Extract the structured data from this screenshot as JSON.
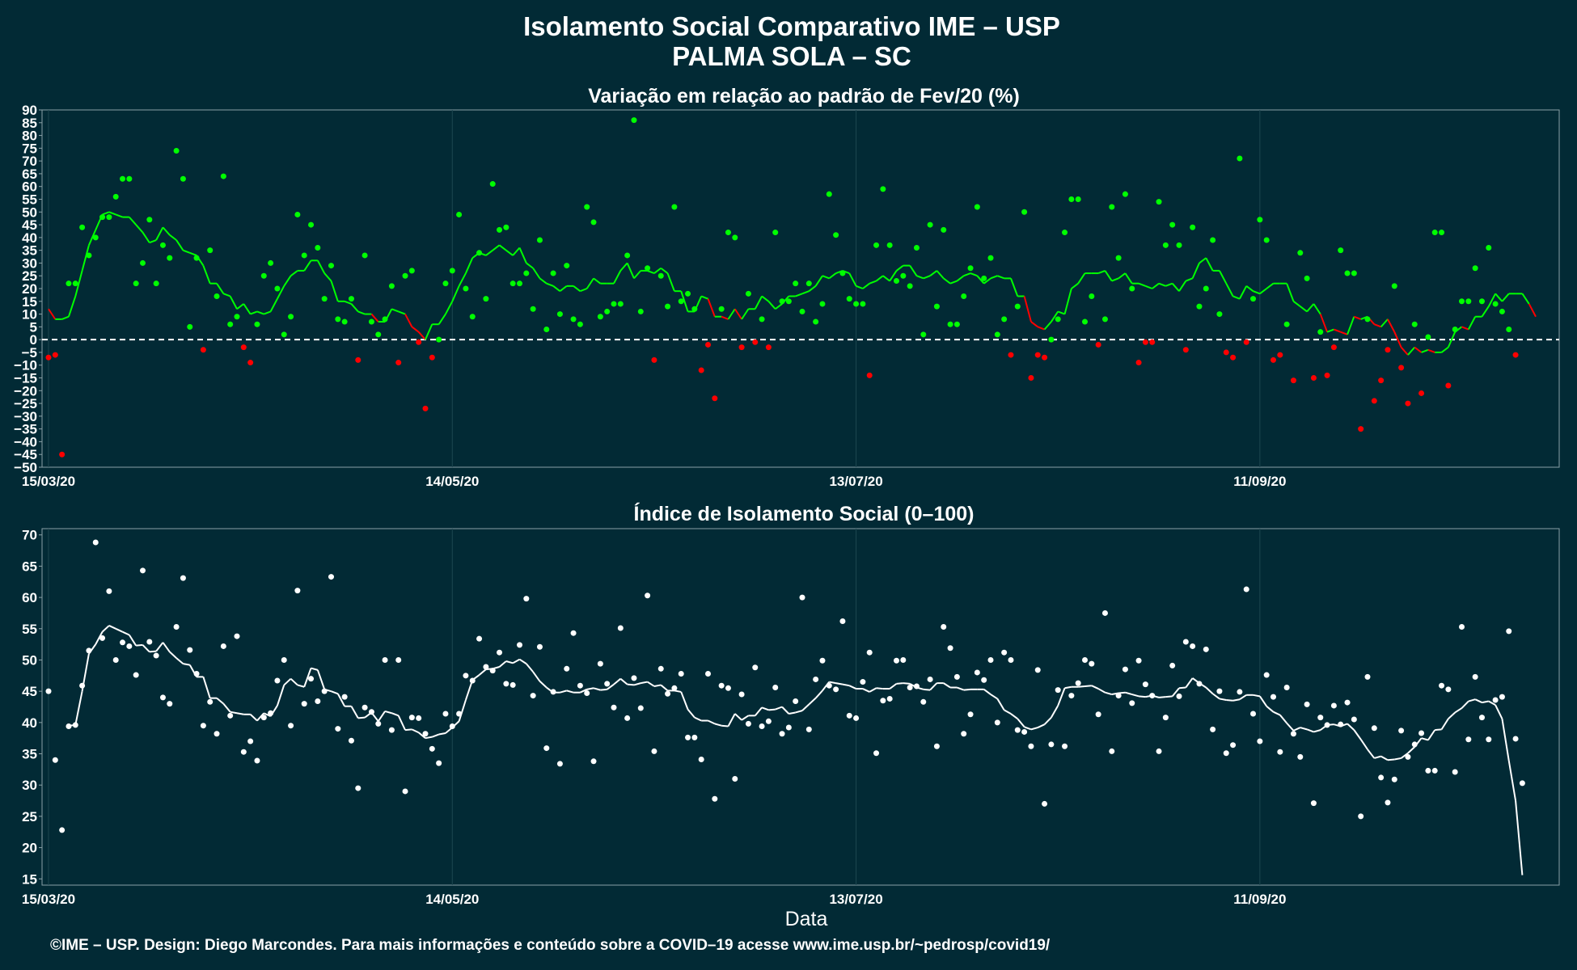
{
  "title_line1": "Isolamento Social Comparativo IME – USP",
  "title_line2": "PALMA SOLA – SC",
  "footer": "©IME – USP. Design: Diego Marcondes. Para mais informações e conteúdo sobre a COVID–19 acesse www.ime.usp.br/~pedrosp/covid19/",
  "colors": {
    "background": "#022a35",
    "above_zero": "#00ff00",
    "below_zero": "#ff0000",
    "index": "#ffffff",
    "grid": "#1d4650"
  },
  "chart_data": [
    {
      "type": "scatter",
      "title": "Variação em relação ao padrão de Fev/20 (%)",
      "xlabel": "",
      "ylabel": "",
      "x_tick_labels": [
        "15/03/20",
        "14/05/20",
        "13/07/20",
        "11/09/20"
      ],
      "x_range": [
        "15/03/20",
        "25/10/20"
      ],
      "ylim": [
        -50,
        90
      ],
      "y_ticks": [
        -50,
        -45,
        -40,
        -35,
        -30,
        -25,
        -20,
        -15,
        -10,
        -5,
        0,
        5,
        10,
        15,
        20,
        25,
        30,
        35,
        40,
        45,
        50,
        55,
        60,
        65,
        70,
        75,
        80,
        85,
        90
      ],
      "reference_line": 0,
      "series": [
        {
          "values": [
            -7,
            -6,
            -45,
            22,
            22,
            44,
            33,
            40,
            48,
            48,
            56,
            63,
            63,
            22,
            30,
            47,
            22,
            37,
            32,
            74,
            63,
            5,
            32,
            -4,
            35,
            17,
            64,
            6,
            9,
            -3,
            -9,
            6,
            25,
            30,
            20,
            2,
            9,
            49,
            33,
            45,
            36,
            16,
            29,
            8,
            7,
            16,
            -8,
            33,
            7,
            2,
            8,
            21,
            -9,
            25,
            27,
            -1,
            -27,
            -7,
            0,
            22,
            27,
            49,
            20,
            9,
            34,
            16,
            61,
            43,
            44,
            22,
            22,
            26,
            12,
            39,
            4,
            26,
            10,
            29,
            8,
            6,
            52,
            46,
            9,
            11,
            14,
            14,
            33,
            86,
            11,
            28,
            -8,
            25,
            13,
            52,
            15,
            18,
            12,
            -12,
            -2,
            -23,
            12,
            42,
            40,
            -3,
            18,
            -1,
            8,
            -3,
            42,
            15,
            15,
            22,
            11,
            22,
            7,
            14,
            57,
            41,
            26,
            16,
            14,
            14,
            -14,
            37,
            59,
            37,
            23,
            25,
            21,
            36,
            2,
            45,
            13,
            43,
            6,
            6,
            17,
            28,
            52,
            24,
            32,
            2,
            8,
            -6,
            13,
            50,
            -15,
            -6,
            -7,
            0,
            8,
            42,
            55,
            55,
            7,
            17,
            -2,
            8,
            52,
            32,
            57,
            20,
            -9,
            -1,
            -1,
            54,
            37,
            45,
            37,
            -4,
            44,
            13,
            20,
            39,
            10,
            -5,
            -7,
            71,
            -1,
            16,
            47,
            39,
            -8,
            -6,
            6,
            -16,
            34,
            24,
            -15,
            3,
            -14,
            -3,
            35,
            26,
            26,
            -35,
            8,
            -24,
            -16,
            -4,
            21,
            -11,
            -25,
            6,
            -21,
            1,
            42,
            42,
            -18,
            4,
            15,
            15,
            28,
            15,
            36,
            14,
            11,
            4,
            -6
          ]
        },
        {
          "values": [
            12,
            8,
            8,
            9,
            17,
            27,
            37,
            43,
            49,
            50,
            49,
            48,
            48,
            45,
            42,
            38,
            39,
            44,
            41,
            39,
            35,
            34,
            33,
            29,
            22,
            22,
            18,
            17,
            12,
            14,
            10,
            11,
            10,
            11,
            16,
            21,
            25,
            27,
            27,
            31,
            31,
            26,
            23,
            15,
            15,
            14,
            11,
            10,
            10,
            7,
            7,
            12,
            11,
            10,
            5,
            3,
            0,
            6,
            6,
            10,
            15,
            21,
            26,
            32,
            34,
            33,
            35,
            37,
            35,
            33,
            36,
            30,
            28,
            24,
            22,
            21,
            19,
            21,
            21,
            19,
            20,
            24,
            22,
            22,
            22,
            27,
            30,
            24,
            27,
            27,
            26,
            28,
            26,
            19,
            19,
            11,
            11,
            17,
            16,
            9,
            9,
            8,
            12,
            8,
            12,
            12,
            17,
            15,
            12,
            14,
            17,
            17,
            18,
            19,
            21,
            25,
            24,
            26,
            27,
            26,
            21,
            20,
            22,
            23,
            25,
            23,
            27,
            29,
            29,
            25,
            24,
            25,
            27,
            24,
            22,
            23,
            25,
            26,
            25,
            22,
            24,
            25,
            24,
            24,
            17,
            17,
            7,
            5,
            4,
            7,
            11,
            10,
            20,
            22,
            26,
            26,
            26,
            27,
            23,
            24,
            26,
            22,
            22,
            21,
            20,
            22,
            21,
            22,
            19,
            23,
            24,
            30,
            32,
            27,
            27,
            22,
            17,
            16,
            21,
            19,
            18,
            20,
            22,
            22,
            22,
            15,
            13,
            11,
            14,
            10,
            3,
            4,
            3,
            2,
            9,
            8,
            9,
            6,
            5,
            8,
            3,
            -3,
            -6,
            -3,
            -5,
            -4,
            -5,
            -5,
            -3,
            3,
            5,
            4,
            9,
            9,
            13,
            18,
            15,
            18,
            18,
            18,
            14,
            9
          ]
        }
      ]
    },
    {
      "type": "scatter",
      "title": "Índice de Isolamento Social (0–100)",
      "xlabel": "Data",
      "ylabel": "",
      "x_tick_labels": [
        "15/03/20",
        "14/05/20",
        "13/07/20",
        "11/09/20"
      ],
      "x_range": [
        "15/03/20",
        "25/10/20"
      ],
      "ylim": [
        14,
        71
      ],
      "y_ticks": [
        15,
        20,
        25,
        30,
        35,
        40,
        45,
        50,
        55,
        60,
        65,
        70
      ],
      "series": [
        {
          "values": [
            45,
            34,
            22.8,
            39.4,
            39.6,
            45.9,
            51.5,
            68.8,
            53.5,
            61,
            50,
            52.8,
            52.2,
            47.6,
            64.3,
            52.9,
            50.7,
            44,
            43,
            55.3,
            63.1,
            51.6,
            47.8,
            39.5,
            43.3,
            38.2,
            52.2,
            41.1,
            53.8,
            35.3,
            37,
            33.9,
            40.8,
            41.5,
            46.7,
            50,
            39.5,
            61.1,
            43,
            47,
            43.4,
            45,
            63.3,
            39,
            44.1,
            37.1,
            29.5,
            42.4,
            41.7,
            39.8,
            50,
            38.8,
            50,
            29,
            40.8,
            40.7,
            38.2,
            35.8,
            33.5,
            41.4,
            39.4,
            41.4,
            47.5,
            46.7,
            53.4,
            48.9,
            48.3,
            51.2,
            46.2,
            46,
            52.4,
            59.8,
            44.3,
            52.1,
            35.9,
            44.9,
            33.4,
            48.6,
            54.3,
            45.9,
            44.7,
            33.8,
            49.4,
            46.2,
            42.4,
            55.1,
            40.7,
            47.1,
            42.3,
            60.3,
            35.4,
            48.6,
            44.6,
            45.5,
            47.8,
            37.6,
            37.6,
            34.1,
            47.8,
            27.8,
            45.9,
            45.5,
            31,
            44.5,
            39.8,
            48.8,
            39.4,
            40.2,
            45.6,
            38.2,
            39.2,
            43.4,
            60,
            38.9,
            46.9,
            49.9,
            45.9,
            45.3,
            56.2,
            41.1,
            40.7,
            46.5,
            51.2,
            35.1,
            43.5,
            43.8,
            49.9,
            50,
            45.6,
            45.8,
            43.3,
            46.9,
            36.2,
            55.3,
            51.9,
            47.3,
            38.2,
            41.3,
            48,
            46.8,
            50,
            40,
            51.2,
            50,
            38.8,
            38.5,
            36.2,
            48.4,
            27,
            36.5,
            45.2,
            36.2,
            44.3,
            46.3,
            50,
            49.4,
            41.3,
            57.5,
            35.4,
            44.3,
            48.5,
            43.1,
            49.9,
            46.1,
            44.3,
            35.4,
            40.8,
            49.1,
            44.2,
            52.9,
            52.2,
            46.2,
            51.7,
            38.9,
            45,
            35.1,
            36.4,
            44.9,
            61.3,
            41.4,
            37,
            47.6,
            44.1,
            35.3,
            45.6,
            38.2,
            34.5,
            42.9,
            27.1,
            40.8,
            39.6,
            42.7,
            39.7,
            43.2,
            40.5,
            25,
            47.3,
            39.1,
            31.2,
            27.2,
            30.9,
            38.7,
            34.5,
            36.5,
            38.3,
            32.3,
            32.3,
            45.9,
            45.3,
            32.1,
            55.3,
            37.3,
            47.3,
            40.8,
            37.3,
            43.6,
            44.1,
            54.6,
            37.4,
            30.3
          ]
        },
        {
          "values": [
            null,
            null,
            null,
            39.5,
            39.6,
            45,
            51,
            52.5,
            54.5,
            55.5,
            55,
            54.5,
            54,
            52.3,
            52.4,
            51.3,
            51.4,
            52.8,
            51.3,
            50.3,
            49.4,
            49.2,
            47.3,
            47.3,
            43.9,
            43.9,
            43,
            41.7,
            41.5,
            41.3,
            41.3,
            40.3,
            41.5,
            41,
            42.7,
            46,
            47,
            46,
            45.7,
            48.7,
            48.4,
            45.3,
            45,
            44.6,
            42.6,
            42.6,
            40.7,
            40.8,
            41.6,
            40.2,
            41.8,
            41.5,
            41.1,
            38.8,
            38.9,
            38.4,
            37.5,
            37.7,
            38.1,
            38.3,
            39.2,
            40.2,
            43.6,
            46.8,
            47.6,
            48.5,
            48.6,
            48.9,
            49.8,
            49.5,
            50.1,
            49.4,
            48.1,
            46.6,
            45.6,
            44.8,
            44.8,
            45.1,
            44.8,
            44.8,
            45.3,
            45.5,
            45.2,
            45.3,
            46.1,
            47,
            46.1,
            46,
            46.3,
            46.5,
            45.8,
            46,
            45.1,
            45.1,
            44.9,
            42.1,
            40.8,
            40.3,
            40.3,
            39.8,
            39.5,
            39.4,
            41.4,
            40.4,
            41.1,
            41.1,
            42.4,
            42,
            42.1,
            42.5,
            41.4,
            41.6,
            41.9,
            42.9,
            43.9,
            45.1,
            46.5,
            46.3,
            46.1,
            45.9,
            45.4,
            45.4,
            44.9,
            45.5,
            45.4,
            45.4,
            46.2,
            46.3,
            46.2,
            45.6,
            45.3,
            45.2,
            46.3,
            46.3,
            45.6,
            45.6,
            45.2,
            45.3,
            45.3,
            45.3,
            44.5,
            43.8,
            42,
            41.4,
            40.6,
            39.3,
            38.9,
            39.2,
            39.7,
            40.8,
            42.7,
            45.5,
            45.7,
            45.7,
            45.8,
            45.9,
            45.4,
            44.8,
            44.5,
            44.7,
            44.8,
            44.5,
            44.2,
            44.1,
            44.3,
            44,
            44.1,
            44.2,
            45.5,
            45.6,
            47.1,
            46.3,
            45.6,
            44.6,
            43.8,
            43.6,
            43.5,
            43.7,
            44.4,
            44.4,
            44.2,
            42.6,
            41.7,
            41.2,
            39.9,
            38.7,
            39.2,
            38.9,
            38.5,
            38.8,
            39.6,
            39.7,
            39.4,
            39.8,
            38.8,
            37.3,
            35.7,
            34.3,
            34.6,
            34,
            34.1,
            34.3,
            35.1,
            36.1,
            37.5,
            37.2,
            38.8,
            38.9,
            40.6,
            41.6,
            42.3,
            43.4,
            43.7,
            43.2,
            43.4,
            42.8,
            40.6,
            33.9,
            27.5,
            15.6
          ]
        }
      ]
    }
  ]
}
